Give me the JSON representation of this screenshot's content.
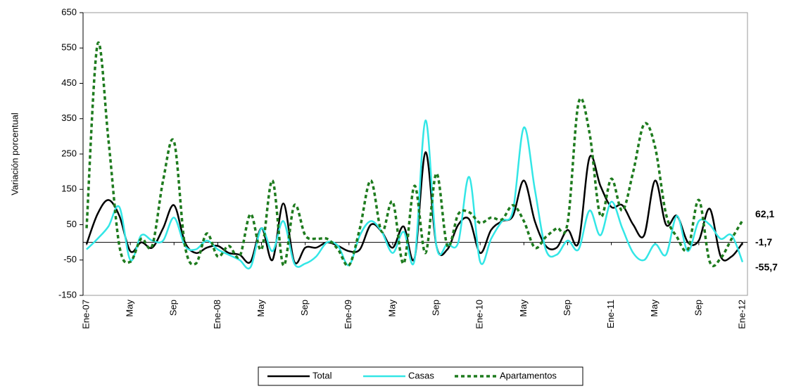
{
  "chart_data": {
    "type": "line",
    "y_label": "Variación porcentual",
    "categories": [
      "Ene-07",
      null,
      null,
      null,
      "May",
      null,
      null,
      null,
      "Sep",
      null,
      null,
      null,
      "Ene-08",
      null,
      null,
      null,
      "May",
      null,
      null,
      null,
      "Sep",
      null,
      null,
      null,
      "Ene-09",
      null,
      null,
      null,
      "May",
      null,
      null,
      null,
      "Sep",
      null,
      null,
      null,
      "Ene-10",
      null,
      null,
      null,
      "May",
      null,
      null,
      null,
      "Sep",
      null,
      null,
      null,
      "Ene-11",
      null,
      null,
      null,
      "May",
      null,
      null,
      null,
      "Sep",
      null,
      null,
      null,
      "Ene-12"
    ],
    "ylim": [
      -150,
      650
    ],
    "yticks": [
      -150,
      -50,
      50,
      150,
      250,
      350,
      450,
      550,
      650
    ],
    "legend": "bottom",
    "series": [
      {
        "name": "Total",
        "color": "#000000",
        "dash": false,
        "values": [
          -5,
          80,
          120,
          75,
          -25,
          0,
          -15,
          40,
          105,
          0,
          -30,
          -15,
          -10,
          -30,
          -35,
          -55,
          40,
          -50,
          110,
          -55,
          -15,
          -15,
          0,
          -10,
          -25,
          -20,
          50,
          30,
          -15,
          45,
          -45,
          255,
          -10,
          -20,
          50,
          65,
          -30,
          35,
          60,
          75,
          175,
          60,
          -10,
          -15,
          35,
          0,
          240,
          160,
          100,
          105,
          50,
          20,
          175,
          50,
          75,
          0,
          5,
          95,
          -40,
          -40,
          -1.7
        ],
        "value_labels": [
          null,
          null,
          null,
          null,
          null,
          null,
          null,
          null,
          null,
          null,
          null,
          null,
          null,
          null,
          null,
          null,
          null,
          null,
          null,
          null,
          null,
          null,
          null,
          null,
          null,
          null,
          null,
          null,
          null,
          null,
          null,
          null,
          null,
          null,
          null,
          null,
          null,
          null,
          null,
          null,
          null,
          null,
          null,
          null,
          null,
          null,
          null,
          null,
          null,
          null,
          null,
          null,
          null,
          null,
          null,
          null,
          null,
          null,
          null,
          null,
          "-1,7"
        ],
        "label_color": "#000000"
      },
      {
        "name": "Casas",
        "color": "#33e6e6",
        "dash": false,
        "values": [
          -20,
          10,
          45,
          100,
          -50,
          20,
          5,
          5,
          70,
          -10,
          -20,
          5,
          -20,
          -35,
          -50,
          -70,
          40,
          -25,
          60,
          -60,
          -60,
          -40,
          0,
          -10,
          -65,
          20,
          60,
          30,
          -30,
          30,
          -50,
          345,
          -10,
          -5,
          0,
          185,
          -55,
          10,
          60,
          90,
          325,
          150,
          -20,
          -35,
          5,
          -20,
          90,
          20,
          115,
          40,
          -30,
          -50,
          -5,
          -35,
          75,
          -25,
          60,
          50,
          10,
          20,
          -55.7
        ],
        "value_labels": [
          null,
          null,
          null,
          null,
          null,
          null,
          null,
          null,
          null,
          null,
          null,
          null,
          null,
          null,
          null,
          null,
          null,
          null,
          null,
          null,
          null,
          null,
          null,
          null,
          null,
          null,
          null,
          null,
          null,
          null,
          null,
          null,
          null,
          null,
          null,
          null,
          null,
          null,
          null,
          null,
          null,
          null,
          null,
          null,
          null,
          null,
          null,
          null,
          null,
          null,
          null,
          null,
          null,
          null,
          null,
          null,
          null,
          null,
          null,
          null,
          "-55,7"
        ],
        "label_color": "#33cccc"
      },
      {
        "name": "Apartamentos",
        "color": "#1e7b1e",
        "dash": true,
        "values": [
          40,
          560,
          290,
          -10,
          -55,
          10,
          -10,
          175,
          285,
          -10,
          -60,
          25,
          -40,
          -10,
          -40,
          80,
          -20,
          175,
          -65,
          105,
          20,
          10,
          10,
          -20,
          -65,
          40,
          175,
          30,
          115,
          -60,
          160,
          -30,
          195,
          -10,
          80,
          85,
          55,
          70,
          65,
          105,
          60,
          -15,
          15,
          40,
          55,
          395,
          310,
          75,
          180,
          90,
          200,
          335,
          270,
          80,
          15,
          -20,
          120,
          -55,
          -45,
          10,
          62.1
        ],
        "value_labels": [
          null,
          null,
          null,
          null,
          null,
          null,
          null,
          null,
          null,
          null,
          null,
          null,
          null,
          null,
          null,
          null,
          null,
          null,
          null,
          null,
          null,
          null,
          null,
          null,
          null,
          null,
          null,
          null,
          null,
          null,
          null,
          null,
          null,
          null,
          null,
          null,
          null,
          null,
          null,
          null,
          null,
          null,
          null,
          null,
          null,
          null,
          null,
          null,
          null,
          null,
          null,
          null,
          null,
          null,
          null,
          null,
          null,
          null,
          null,
          null,
          "62,1"
        ],
        "label_color": "#339966"
      }
    ]
  }
}
